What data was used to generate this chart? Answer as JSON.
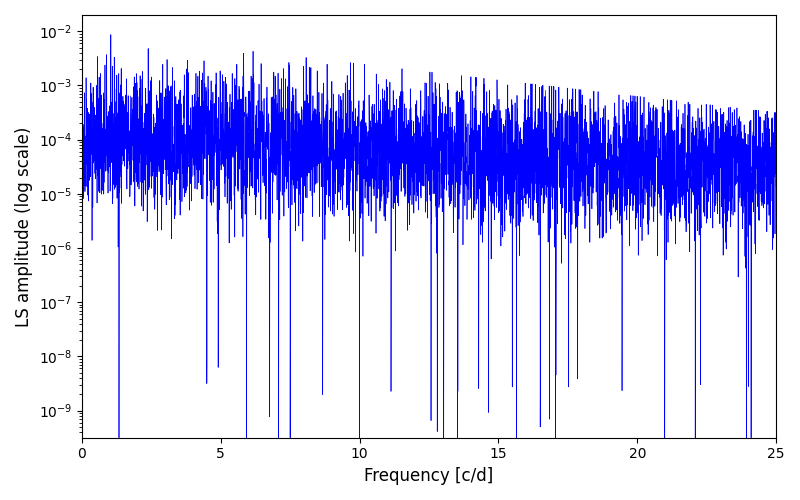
{
  "title": "",
  "xlabel": "Frequency [c/d]",
  "ylabel": "LS amplitude (log scale)",
  "xlim": [
    0,
    25
  ],
  "ylim_log": [
    -9.5,
    -1.7
  ],
  "line_color": "#0000ff",
  "line_width": 0.5,
  "figsize": [
    8.0,
    5.0
  ],
  "dpi": 100,
  "seed": 42,
  "n_points": 5000,
  "freq_max": 25.0,
  "base_log": -4.0,
  "base_slope": -0.02,
  "noise_std": 0.6,
  "upper_clip_low": -2.0,
  "upper_clip_high": -3.5,
  "lower_clip": -9.5,
  "n_deep_dips": 30,
  "dip_depth_min": 4.0,
  "dip_depth_max": 6.5
}
